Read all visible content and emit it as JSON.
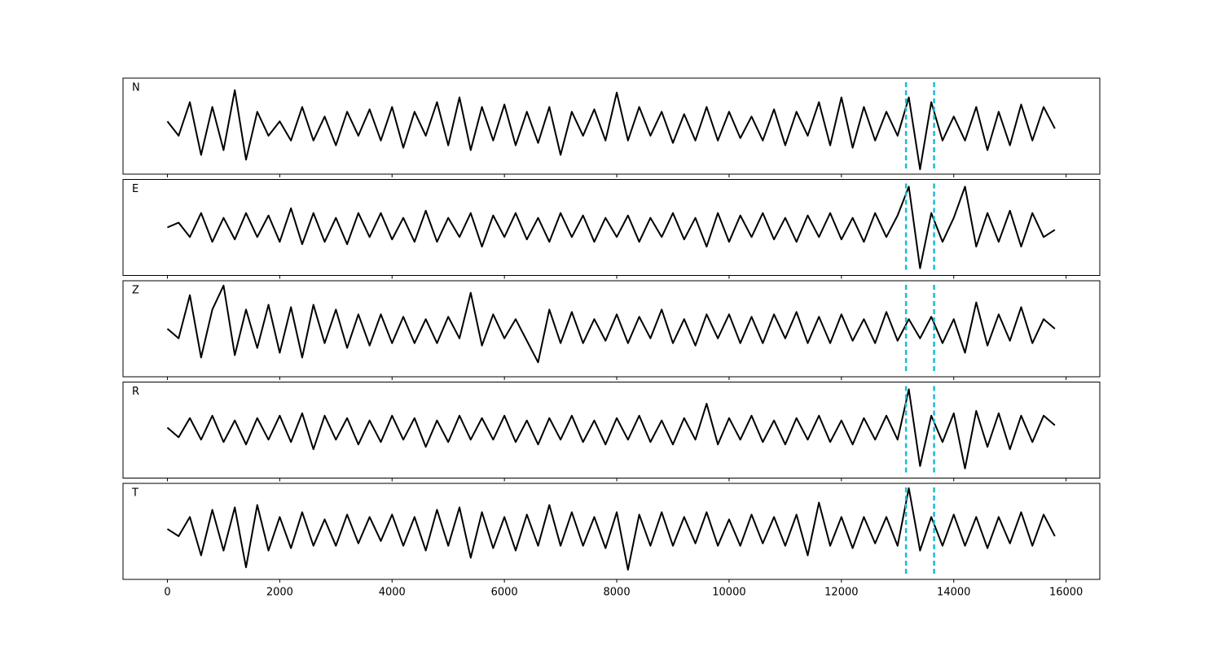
{
  "chart_data": [
    {
      "type": "line",
      "label": "N",
      "color": "#000000",
      "marker_color": "#17becf",
      "markers": [
        13150,
        13650
      ],
      "xlim": [
        -790,
        16600
      ],
      "ylim": [
        -1,
        1
      ],
      "xticks": [
        0,
        2000,
        4000,
        6000,
        8000,
        10000,
        12000,
        14000,
        16000
      ],
      "x": [
        0,
        200,
        400,
        600,
        800,
        1000,
        1200,
        1400,
        1600,
        1800,
        2000,
        2200,
        2400,
        2600,
        2800,
        3000,
        3200,
        3400,
        3600,
        3800,
        4000,
        4200,
        4400,
        4600,
        4800,
        5000,
        5200,
        5400,
        5600,
        5800,
        6000,
        6200,
        6400,
        6600,
        6800,
        7000,
        7200,
        7400,
        7600,
        7800,
        8000,
        8200,
        8400,
        8600,
        8800,
        9000,
        9200,
        9400,
        9600,
        9800,
        10000,
        10200,
        10400,
        10600,
        10800,
        11000,
        11200,
        11400,
        11600,
        11800,
        12000,
        12200,
        12400,
        12600,
        12800,
        13000,
        13200,
        13400,
        13600,
        13800,
        14000,
        14200,
        14400,
        14600,
        14800,
        15000,
        15200,
        15400,
        15600,
        15800
      ],
      "values": [
        0.1,
        -0.2,
        0.5,
        -0.6,
        0.4,
        -0.5,
        0.75,
        -0.7,
        0.3,
        -0.2,
        0.1,
        -0.3,
        0.4,
        -0.3,
        0.2,
        -0.4,
        0.3,
        -0.2,
        0.35,
        -0.3,
        0.4,
        -0.45,
        0.3,
        -0.2,
        0.5,
        -0.4,
        0.6,
        -0.5,
        0.4,
        -0.3,
        0.45,
        -0.4,
        0.3,
        -0.35,
        0.4,
        -0.6,
        0.3,
        -0.2,
        0.35,
        -0.3,
        0.7,
        -0.3,
        0.4,
        -0.2,
        0.3,
        -0.35,
        0.25,
        -0.3,
        0.4,
        -0.3,
        0.3,
        -0.25,
        0.2,
        -0.3,
        0.35,
        -0.4,
        0.3,
        -0.2,
        0.5,
        -0.4,
        0.6,
        -0.45,
        0.4,
        -0.3,
        0.3,
        -0.2,
        0.6,
        -0.9,
        0.5,
        -0.3,
        0.2,
        -0.3,
        0.4,
        -0.5,
        0.3,
        -0.4,
        0.45,
        -0.3,
        0.4,
        -0.05
      ]
    },
    {
      "type": "line",
      "label": "E",
      "color": "#000000",
      "marker_color": "#17becf",
      "markers": [
        13150,
        13650
      ],
      "xlim": [
        -790,
        16600
      ],
      "ylim": [
        -1,
        1
      ],
      "xticks": [
        0,
        2000,
        4000,
        6000,
        8000,
        10000,
        12000,
        14000,
        16000
      ],
      "x": [
        0,
        200,
        400,
        600,
        800,
        1000,
        1200,
        1400,
        1600,
        1800,
        2000,
        2200,
        2400,
        2600,
        2800,
        3000,
        3200,
        3400,
        3600,
        3800,
        4000,
        4200,
        4400,
        4600,
        4800,
        5000,
        5200,
        5400,
        5600,
        5800,
        6000,
        6200,
        6400,
        6600,
        6800,
        7000,
        7200,
        7400,
        7600,
        7800,
        8000,
        8200,
        8400,
        8600,
        8800,
        9000,
        9200,
        9400,
        9600,
        9800,
        10000,
        10200,
        10400,
        10600,
        10800,
        11000,
        11200,
        11400,
        11600,
        11800,
        12000,
        12200,
        12400,
        12600,
        12800,
        13000,
        13200,
        13400,
        13600,
        13800,
        14000,
        14200,
        14400,
        14600,
        14800,
        15000,
        15200,
        15400,
        15600,
        15800
      ],
      "values": [
        0,
        0.1,
        -0.2,
        0.3,
        -0.3,
        0.2,
        -0.25,
        0.3,
        -0.2,
        0.25,
        -0.3,
        0.4,
        -0.35,
        0.3,
        -0.3,
        0.2,
        -0.35,
        0.3,
        -0.2,
        0.3,
        -0.25,
        0.2,
        -0.3,
        0.35,
        -0.3,
        0.2,
        -0.2,
        0.3,
        -0.4,
        0.25,
        -0.2,
        0.3,
        -0.25,
        0.2,
        -0.3,
        0.3,
        -0.2,
        0.25,
        -0.3,
        0.2,
        -0.2,
        0.25,
        -0.3,
        0.2,
        -0.2,
        0.3,
        -0.25,
        0.2,
        -0.4,
        0.3,
        -0.3,
        0.25,
        -0.2,
        0.3,
        -0.25,
        0.2,
        -0.3,
        0.25,
        -0.2,
        0.3,
        -0.25,
        0.2,
        -0.3,
        0.3,
        -0.2,
        0.25,
        0.85,
        -0.85,
        0.3,
        -0.3,
        0.2,
        0.85,
        -0.4,
        0.3,
        -0.3,
        0.35,
        -0.4,
        0.3,
        -0.2,
        -0.05
      ]
    },
    {
      "type": "line",
      "label": "Z",
      "color": "#000000",
      "marker_color": "#17becf",
      "markers": [
        13150,
        13650
      ],
      "xlim": [
        -790,
        16600
      ],
      "ylim": [
        -1,
        1
      ],
      "xticks": [
        0,
        2000,
        4000,
        6000,
        8000,
        10000,
        12000,
        14000,
        16000
      ],
      "x": [
        0,
        200,
        400,
        600,
        800,
        1000,
        1200,
        1400,
        1600,
        1800,
        2000,
        2200,
        2400,
        2600,
        2800,
        3000,
        3200,
        3400,
        3600,
        3800,
        4000,
        4200,
        4400,
        4600,
        4800,
        5000,
        5200,
        5400,
        5600,
        5800,
        6000,
        6200,
        6400,
        6600,
        6800,
        7000,
        7200,
        7400,
        7600,
        7800,
        8000,
        8200,
        8400,
        8600,
        8800,
        9000,
        9200,
        9400,
        9600,
        9800,
        10000,
        10200,
        10400,
        10600,
        10800,
        11000,
        11200,
        11400,
        11600,
        11800,
        12000,
        12200,
        12400,
        12600,
        12800,
        13000,
        13200,
        13400,
        13600,
        13800,
        14000,
        14200,
        14400,
        14600,
        14800,
        15000,
        15200,
        15400,
        15600,
        15800
      ],
      "values": [
        0,
        -0.2,
        0.7,
        -0.6,
        0.4,
        0.9,
        -0.55,
        0.4,
        -0.4,
        0.5,
        -0.5,
        0.45,
        -0.6,
        0.5,
        -0.3,
        0.4,
        -0.4,
        0.3,
        -0.35,
        0.3,
        -0.3,
        0.25,
        -0.3,
        0.2,
        -0.3,
        0.25,
        -0.2,
        0.75,
        -0.35,
        0.3,
        -0.2,
        0.2,
        -0.25,
        -0.7,
        0.4,
        -0.3,
        0.35,
        -0.3,
        0.2,
        -0.25,
        0.3,
        -0.3,
        0.25,
        -0.2,
        0.4,
        -0.3,
        0.2,
        -0.35,
        0.3,
        -0.2,
        0.3,
        -0.3,
        0.25,
        -0.3,
        0.3,
        -0.2,
        0.35,
        -0.3,
        0.25,
        -0.3,
        0.3,
        -0.25,
        0.2,
        -0.3,
        0.35,
        -0.25,
        0.2,
        -0.2,
        0.25,
        -0.3,
        0.2,
        -0.5,
        0.55,
        -0.35,
        0.3,
        -0.25,
        0.45,
        -0.3,
        0.2,
        0
      ]
    },
    {
      "type": "line",
      "label": "R",
      "color": "#000000",
      "marker_color": "#17becf",
      "markers": [
        13150,
        13650
      ],
      "xlim": [
        -790,
        16600
      ],
      "ylim": [
        -1,
        1
      ],
      "xticks": [
        0,
        2000,
        4000,
        6000,
        8000,
        10000,
        12000,
        14000,
        16000
      ],
      "x": [
        0,
        200,
        400,
        600,
        800,
        1000,
        1200,
        1400,
        1600,
        1800,
        2000,
        2200,
        2400,
        2600,
        2800,
        3000,
        3200,
        3400,
        3600,
        3800,
        4000,
        4200,
        4400,
        4600,
        4800,
        5000,
        5200,
        5400,
        5600,
        5800,
        6000,
        6200,
        6400,
        6600,
        6800,
        7000,
        7200,
        7400,
        7600,
        7800,
        8000,
        8200,
        8400,
        8600,
        8800,
        9000,
        9200,
        9400,
        9600,
        9800,
        10000,
        10200,
        10400,
        10600,
        10800,
        11000,
        11200,
        11400,
        11600,
        11800,
        12000,
        12200,
        12400,
        12600,
        12800,
        13000,
        13200,
        13400,
        13600,
        13800,
        14000,
        14200,
        14400,
        14600,
        14800,
        15000,
        15200,
        15400,
        15600,
        15800
      ],
      "values": [
        0.05,
        -0.15,
        0.25,
        -0.2,
        0.3,
        -0.25,
        0.2,
        -0.3,
        0.25,
        -0.2,
        0.3,
        -0.25,
        0.35,
        -0.4,
        0.3,
        -0.2,
        0.25,
        -0.3,
        0.2,
        -0.25,
        0.3,
        -0.2,
        0.25,
        -0.35,
        0.2,
        -0.25,
        0.3,
        -0.2,
        0.25,
        -0.2,
        0.3,
        -0.25,
        0.2,
        -0.3,
        0.25,
        -0.2,
        0.3,
        -0.25,
        0.2,
        -0.3,
        0.25,
        -0.2,
        0.3,
        -0.25,
        0.2,
        -0.3,
        0.25,
        -0.2,
        0.55,
        -0.3,
        0.25,
        -0.2,
        0.3,
        -0.25,
        0.2,
        -0.3,
        0.25,
        -0.2,
        0.3,
        -0.25,
        0.2,
        -0.3,
        0.25,
        -0.2,
        0.3,
        -0.2,
        0.85,
        -0.75,
        0.3,
        -0.25,
        0.35,
        -0.8,
        0.4,
        -0.35,
        0.35,
        -0.4,
        0.3,
        -0.25,
        0.3,
        0.1
      ]
    },
    {
      "type": "line",
      "label": "T",
      "color": "#000000",
      "marker_color": "#17becf",
      "markers": [
        13150,
        13650
      ],
      "xlim": [
        -790,
        16600
      ],
      "ylim": [
        -1,
        1
      ],
      "xticks": [
        0,
        2000,
        4000,
        6000,
        8000,
        10000,
        12000,
        14000,
        16000
      ],
      "x": [
        0,
        200,
        400,
        600,
        800,
        1000,
        1200,
        1400,
        1600,
        1800,
        2000,
        2200,
        2400,
        2600,
        2800,
        3000,
        3200,
        3400,
        3600,
        3800,
        4000,
        4200,
        4400,
        4600,
        4800,
        5000,
        5200,
        5400,
        5600,
        5800,
        6000,
        6200,
        6400,
        6600,
        6800,
        7000,
        7200,
        7400,
        7600,
        7800,
        8000,
        8200,
        8400,
        8600,
        8800,
        9000,
        9200,
        9400,
        9600,
        9800,
        10000,
        10200,
        10400,
        10600,
        10800,
        11000,
        11200,
        11400,
        11600,
        11800,
        12000,
        12200,
        12400,
        12600,
        12800,
        13000,
        13200,
        13400,
        13600,
        13800,
        14000,
        14200,
        14400,
        14600,
        14800,
        15000,
        15200,
        15400,
        15600,
        15800
      ],
      "values": [
        0.05,
        -0.1,
        0.3,
        -0.5,
        0.45,
        -0.4,
        0.5,
        -0.75,
        0.55,
        -0.4,
        0.3,
        -0.35,
        0.4,
        -0.3,
        0.25,
        -0.3,
        0.35,
        -0.25,
        0.3,
        -0.2,
        0.35,
        -0.3,
        0.3,
        -0.4,
        0.45,
        -0.3,
        0.5,
        -0.55,
        0.4,
        -0.35,
        0.3,
        -0.4,
        0.35,
        -0.3,
        0.55,
        -0.3,
        0.4,
        -0.3,
        0.3,
        -0.35,
        0.4,
        -0.8,
        0.35,
        -0.3,
        0.4,
        -0.3,
        0.3,
        -0.25,
        0.4,
        -0.3,
        0.25,
        -0.3,
        0.35,
        -0.25,
        0.3,
        -0.3,
        0.35,
        -0.5,
        0.6,
        -0.3,
        0.3,
        -0.35,
        0.3,
        -0.25,
        0.3,
        -0.3,
        0.9,
        -0.4,
        0.3,
        -0.3,
        0.35,
        -0.3,
        0.3,
        -0.35,
        0.3,
        -0.25,
        0.4,
        -0.3,
        0.35,
        -0.1
      ]
    }
  ]
}
